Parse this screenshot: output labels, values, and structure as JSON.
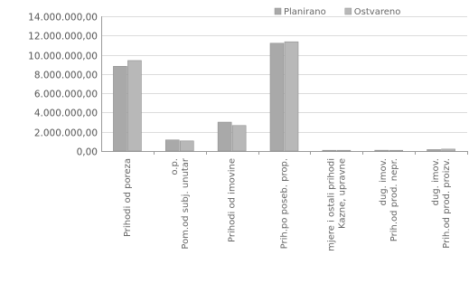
{
  "chart_data": {
    "type": "bar",
    "title": "",
    "xlabel": "",
    "ylabel": "",
    "ylim": [
      0,
      14000000
    ],
    "yticks": [
      0,
      2000000,
      4000000,
      6000000,
      8000000,
      10000000,
      12000000,
      14000000
    ],
    "ytick_labels": [
      "0,00",
      "2.000.000,00",
      "4.000.000,00",
      "6.000.000,00",
      "8.000.000,00",
      "10.000.000,00",
      "12.000.000,00",
      "14.000.000,00"
    ],
    "grid": true,
    "legend_position": "top-right",
    "categories": [
      [
        "Prihodi od poreza"
      ],
      [
        "Pom.od subj. unutar",
        "o.p."
      ],
      [
        "Prihodi od imovine"
      ],
      [
        "Prih.po poseb. prop."
      ],
      [
        "Kazne, upravne",
        "mjere i ostali prihodi"
      ],
      [
        "Prih.od prod. nepr.",
        "dug. imov."
      ],
      [
        "Prih.od prod. proizv.",
        "dug. imov."
      ]
    ],
    "series": [
      {
        "name": "Planirano",
        "color": "#a9a9a9",
        "values": [
          8800000,
          1150000,
          3000000,
          11200000,
          60000,
          80000,
          150000
        ]
      },
      {
        "name": "Ostvareno",
        "color": "#b8b8b8",
        "values": [
          9400000,
          1050000,
          2650000,
          11350000,
          50000,
          70000,
          200000
        ]
      }
    ]
  }
}
